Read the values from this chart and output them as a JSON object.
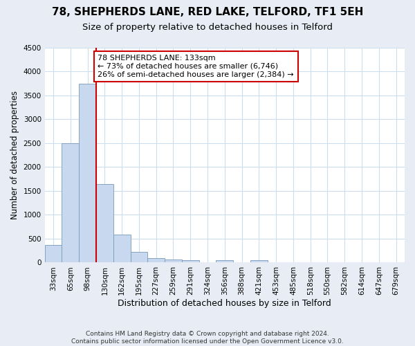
{
  "title1": "78, SHEPHERDS LANE, RED LAKE, TELFORD, TF1 5EH",
  "title2": "Size of property relative to detached houses in Telford",
  "xlabel": "Distribution of detached houses by size in Telford",
  "ylabel": "Number of detached properties",
  "footer": "Contains HM Land Registry data © Crown copyright and database right 2024.\nContains public sector information licensed under the Open Government Licence v3.0.",
  "bin_labels": [
    "33sqm",
    "65sqm",
    "98sqm",
    "130sqm",
    "162sqm",
    "195sqm",
    "227sqm",
    "259sqm",
    "291sqm",
    "324sqm",
    "356sqm",
    "388sqm",
    "421sqm",
    "453sqm",
    "485sqm",
    "518sqm",
    "550sqm",
    "582sqm",
    "614sqm",
    "647sqm",
    "679sqm"
  ],
  "bar_values": [
    375,
    2500,
    3750,
    1650,
    590,
    230,
    100,
    65,
    45,
    0,
    55,
    0,
    50,
    0,
    0,
    0,
    0,
    0,
    0,
    0,
    0
  ],
  "bar_color": "#c8d8ee",
  "bar_edgecolor": "#7799bb",
  "vline_color": "#cc0000",
  "ylim": [
    0,
    4500
  ],
  "yticks": [
    0,
    500,
    1000,
    1500,
    2000,
    2500,
    3000,
    3500,
    4000,
    4500
  ],
  "annotation_title": "78 SHEPHERDS LANE: 133sqm",
  "annotation_line1": "← 73% of detached houses are smaller (6,746)",
  "annotation_line2": "26% of semi-detached houses are larger (2,384) →",
  "annotation_box_color": "#ffffff",
  "annotation_box_edgecolor": "#cc0000",
  "fig_bg_color": "#e8edf5",
  "plot_bg_color": "#ffffff",
  "grid_color": "#ccddee",
  "title1_fontsize": 11,
  "title2_fontsize": 9.5,
  "xlabel_fontsize": 9,
  "ylabel_fontsize": 8.5,
  "tick_fontsize": 7.5,
  "footer_fontsize": 6.5
}
